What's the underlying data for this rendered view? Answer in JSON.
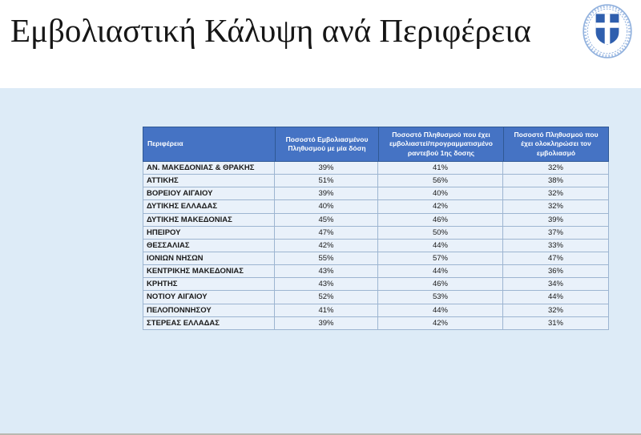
{
  "page": {
    "title": "Εμβολιαστική Κάλυψη ανά Περιφέρεια"
  },
  "logo": {
    "emblem": "greek-state-coat-of-arms",
    "shield_color": "#2f5fae",
    "cross_color": "#ffffff",
    "wreath_color": "#92b2de"
  },
  "colors": {
    "panel_bg": "#ddebf7",
    "header_bg": "#4573c4",
    "header_text": "#ffffff",
    "header_border": "#2f5894",
    "row_bg": "#e9f1fa",
    "grid_line": "#9db5d1"
  },
  "table": {
    "columns": [
      {
        "label": "Περιφέρεια"
      },
      {
        "label": "Ποσοστό Εμβολιασμένου Πληθυσμού με μία δόση"
      },
      {
        "label": "Ποσοστό Πληθυσμού  που έχει εμβολιαστεί/προγραμματισμένο ραντεβού 1ης δοσης"
      },
      {
        "label": "Ποσοστό Πληθυσμού που έχει ολοκληρώσει τον εμβολιασμό"
      }
    ],
    "rows": [
      {
        "region": "ΑΝ. ΜΑΚΕΔΟΝΙΑΣ & ΘΡΑΚΗΣ",
        "one_dose": "39%",
        "scheduled": "41%",
        "completed": "32%"
      },
      {
        "region": "ΑΤΤΙΚΗΣ",
        "one_dose": "51%",
        "scheduled": "56%",
        "completed": "38%"
      },
      {
        "region": "ΒΟΡΕΙΟΥ ΑΙΓΑΙΟΥ",
        "one_dose": "39%",
        "scheduled": "40%",
        "completed": "32%"
      },
      {
        "region": "ΔΥΤΙΚΗΣ ΕΛΛΑΔΑΣ",
        "one_dose": "40%",
        "scheduled": "42%",
        "completed": "32%"
      },
      {
        "region": "ΔΥΤΙΚΗΣ ΜΑΚΕΔΟΝΙΑΣ",
        "one_dose": "45%",
        "scheduled": "46%",
        "completed": "39%"
      },
      {
        "region": "ΗΠΕΙΡΟΥ",
        "one_dose": "47%",
        "scheduled": "50%",
        "completed": "37%"
      },
      {
        "region": "ΘΕΣΣΑΛΙΑΣ",
        "one_dose": "42%",
        "scheduled": "44%",
        "completed": "33%"
      },
      {
        "region": "ΙΟΝΙΩΝ ΝΗΣΩΝ",
        "one_dose": "55%",
        "scheduled": "57%",
        "completed": "47%"
      },
      {
        "region": "ΚΕΝΤΡΙΚΗΣ ΜΑΚΕΔΟΝΙΑΣ",
        "one_dose": "43%",
        "scheduled": "44%",
        "completed": "36%"
      },
      {
        "region": "ΚΡΗΤΗΣ",
        "one_dose": "43%",
        "scheduled": "46%",
        "completed": "34%"
      },
      {
        "region": "ΝΟΤΙΟΥ ΑΙΓΑΙΟΥ",
        "one_dose": "52%",
        "scheduled": "53%",
        "completed": "44%"
      },
      {
        "region": "ΠΕΛΟΠΟΝΝΗΣΟΥ",
        "one_dose": "41%",
        "scheduled": "44%",
        "completed": "32%"
      },
      {
        "region": "ΣΤΕΡΕΑΣ ΕΛΛΑΔΑΣ",
        "one_dose": "39%",
        "scheduled": "42%",
        "completed": "31%"
      }
    ]
  }
}
